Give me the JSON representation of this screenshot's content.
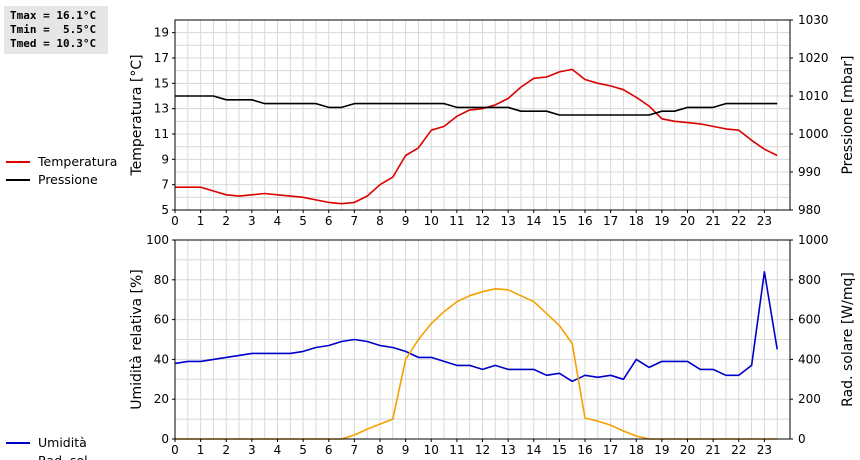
{
  "stats": {
    "tmax": "Tmax = 16.1°C",
    "tmin": "Tmin =  5.5°C",
    "tmed": "Tmed = 10.3°C"
  },
  "colors": {
    "temperature": "#dd0000",
    "pressure": "#000000",
    "humidity": "#0000cc",
    "radiation": "#f5a000",
    "grid": "#d8d8d8"
  },
  "chart_data": [
    {
      "type": "line",
      "x_ticks": [
        "0",
        "1",
        "2",
        "3",
        "4",
        "5",
        "6",
        "7",
        "8",
        "9",
        "10",
        "11",
        "12",
        "13",
        "14",
        "15",
        "16",
        "17",
        "18",
        "19",
        "20",
        "21",
        "22",
        "23"
      ],
      "xlim": [
        0,
        24
      ],
      "ylabel": "Temperatura [°C]",
      "ylabel_right": "Pressione [mbar]",
      "ylim": [
        5,
        20
      ],
      "ylim_right": [
        980,
        1030
      ],
      "y_ticks": [
        "5",
        "7",
        "9",
        "11",
        "13",
        "15",
        "17",
        "19"
      ],
      "y_ticks_right": [
        "980",
        "990",
        "1000",
        "1010",
        "1020",
        "1030"
      ],
      "grid": true,
      "legend_position": "left",
      "series": [
        {
          "name": "Temperatura",
          "axis": "left",
          "color": "#dd0000",
          "x": [
            0,
            0.5,
            1,
            1.5,
            2,
            2.5,
            3,
            3.5,
            4,
            4.5,
            5,
            5.5,
            6,
            6.5,
            7,
            7.5,
            8,
            8.5,
            9,
            9.5,
            10,
            10.5,
            11,
            11.5,
            12,
            12.5,
            13,
            13.5,
            14,
            14.5,
            15,
            15.5,
            16,
            16.5,
            17,
            17.5,
            18,
            18.5,
            19,
            19.5,
            20,
            20.5,
            21,
            21.5,
            22,
            22.5,
            23,
            23.5
          ],
          "values": [
            6.8,
            6.8,
            6.8,
            6.5,
            6.2,
            6.1,
            6.2,
            6.3,
            6.2,
            6.1,
            6.0,
            5.8,
            5.6,
            5.5,
            5.6,
            6.1,
            7.0,
            7.6,
            9.3,
            9.9,
            11.3,
            11.6,
            12.4,
            12.9,
            13.0,
            13.3,
            13.8,
            14.7,
            15.4,
            15.5,
            15.9,
            16.1,
            15.3,
            15.0,
            14.8,
            14.5,
            13.9,
            13.2,
            12.2,
            12.0,
            11.9,
            11.8,
            11.6,
            11.4,
            11.3,
            10.5,
            9.8,
            9.3
          ]
        },
        {
          "name": "Pressione",
          "axis": "right",
          "color": "#000000",
          "x": [
            0,
            0.5,
            1,
            1.5,
            2,
            2.5,
            3,
            3.5,
            4,
            4.5,
            5,
            5.5,
            6,
            6.5,
            7,
            7.5,
            8,
            8.5,
            9,
            9.5,
            10,
            10.5,
            11,
            11.5,
            12,
            12.5,
            13,
            13.5,
            14,
            14.5,
            15,
            15.5,
            16,
            16.5,
            17,
            17.5,
            18,
            18.5,
            19,
            19.5,
            20,
            20.5,
            21,
            21.5,
            22,
            22.5,
            23,
            23.5
          ],
          "values": [
            1010,
            1010,
            1010,
            1010,
            1009,
            1009,
            1009,
            1008,
            1008,
            1008,
            1008,
            1008,
            1007,
            1007,
            1008,
            1008,
            1008,
            1008,
            1008,
            1008,
            1008,
            1008,
            1007,
            1007,
            1007,
            1007,
            1007,
            1006,
            1006,
            1006,
            1005,
            1005,
            1005,
            1005,
            1005,
            1005,
            1005,
            1005,
            1006,
            1006,
            1007,
            1007,
            1007,
            1008,
            1008,
            1008,
            1008,
            1008
          ]
        }
      ]
    },
    {
      "type": "line",
      "x_ticks": [
        "0",
        "1",
        "2",
        "3",
        "4",
        "5",
        "6",
        "7",
        "8",
        "9",
        "10",
        "11",
        "12",
        "13",
        "14",
        "15",
        "16",
        "17",
        "18",
        "19",
        "20",
        "21",
        "22",
        "23"
      ],
      "xlim": [
        0,
        24
      ],
      "ylabel": "Umidità relativa [%]",
      "ylabel_right": "Rad. solare [W/mq]",
      "ylim": [
        0,
        100
      ],
      "ylim_right": [
        0,
        1000
      ],
      "y_ticks": [
        "0",
        "20",
        "40",
        "60",
        "80",
        "100"
      ],
      "y_ticks_right": [
        "0",
        "200",
        "400",
        "600",
        "800",
        "1000"
      ],
      "grid": true,
      "legend_position": "left",
      "series": [
        {
          "name": "Umidità",
          "axis": "left",
          "color": "#0000cc",
          "x": [
            0,
            0.5,
            1,
            1.5,
            2,
            2.5,
            3,
            3.5,
            4,
            4.5,
            5,
            5.5,
            6,
            6.5,
            7,
            7.5,
            8,
            8.5,
            9,
            9.5,
            10,
            10.5,
            11,
            11.5,
            12,
            12.5,
            13,
            13.5,
            14,
            14.5,
            15,
            15.5,
            16,
            16.5,
            17,
            17.5,
            18,
            18.5,
            19,
            19.5,
            20,
            20.5,
            21,
            21.5,
            22,
            22.5,
            23,
            23.5
          ],
          "values": [
            38,
            39,
            39,
            40,
            41,
            42,
            43,
            43,
            43,
            43,
            44,
            46,
            47,
            49,
            50,
            49,
            47,
            46,
            44,
            41,
            41,
            39,
            37,
            37,
            35,
            37,
            35,
            35,
            35,
            32,
            33,
            29,
            32,
            31,
            32,
            30,
            40,
            36,
            39,
            39,
            39,
            35,
            35,
            32,
            32,
            37,
            84,
            45
          ]
        },
        {
          "name": "Rad. sol.",
          "axis": "right",
          "color": "#f5a000",
          "x": [
            0,
            0.5,
            1,
            1.5,
            2,
            2.5,
            3,
            3.5,
            4,
            4.5,
            5,
            5.5,
            6,
            6.5,
            7,
            7.5,
            8,
            8.5,
            9,
            9.5,
            10,
            10.5,
            11,
            11.5,
            12,
            12.5,
            13,
            13.5,
            14,
            14.5,
            15,
            15.5,
            16,
            16.5,
            17,
            17.5,
            18,
            18.5,
            19,
            19.5,
            20,
            20.5,
            21,
            21.5,
            22,
            22.5,
            23,
            23.5
          ],
          "values": [
            0,
            0,
            0,
            0,
            0,
            0,
            0,
            0,
            0,
            0,
            0,
            0,
            0,
            0,
            20,
            50,
            75,
            100,
            400,
            500,
            580,
            640,
            690,
            720,
            740,
            755,
            750,
            720,
            690,
            630,
            570,
            480,
            105,
            90,
            70,
            40,
            15,
            0,
            0,
            0,
            0,
            0,
            0,
            0,
            0,
            0,
            0,
            0
          ]
        }
      ]
    }
  ]
}
